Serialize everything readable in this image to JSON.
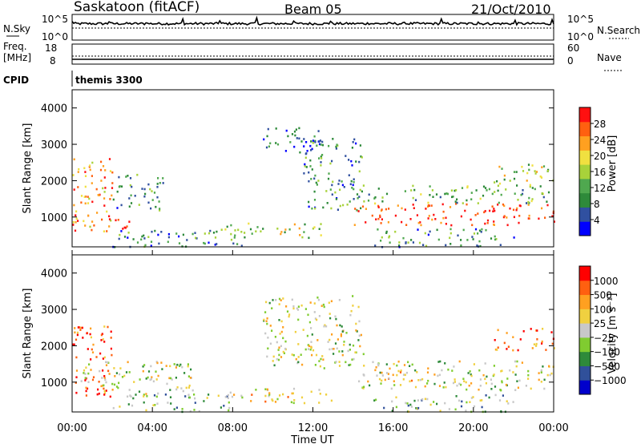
{
  "header": {
    "title": "Saskatoon (fitACF)",
    "beam": "Beam 05",
    "date": "21/Oct/2010"
  },
  "status_panels": {
    "nsky_label": "N.Sky",
    "nsearch_label": "N.Search",
    "noise_ticks_left": [
      "10^5",
      "10^0"
    ],
    "noise_ticks_right": [
      "10^5",
      "10^0"
    ],
    "freq_label_1": "Freq.",
    "freq_label_2": "[MHz]",
    "freq_ticks": [
      "18",
      "8"
    ],
    "nave_label": "Nave",
    "nave_ticks": [
      "60",
      "0"
    ],
    "cpid_label": "CPID",
    "cpid_value": "themis 3300"
  },
  "colors": {
    "power_scale": [
      "#0000ff",
      "#3050a0",
      "#2e8a3a",
      "#4fa84f",
      "#a8d23a",
      "#f0e040",
      "#ffa020",
      "#ff6010",
      "#ff1010"
    ],
    "velocity_scale": [
      "#0000cc",
      "#30509a",
      "#2e8a3a",
      "#80cc30",
      "#c8c8c8",
      "#f0d040",
      "#ffa020",
      "#ff6010",
      "#ff0000"
    ]
  },
  "chart_data": [
    {
      "type": "heatmap",
      "name": "power",
      "ylabel": "Slant Range [km]",
      "yticks": [
        "1000",
        "2000",
        "3000",
        "4000"
      ],
      "ylim": [
        180,
        4500
      ],
      "colorbar_label": "Power [dB]",
      "colorbar_ticks": [
        "4",
        "8",
        "12",
        "16",
        "20",
        "24",
        "28"
      ],
      "colorbar_range": [
        0,
        32
      ],
      "scatter_regions": [
        {
          "t": [
            0.0,
            2.0
          ],
          "r": [
            600,
            2700
          ],
          "level": 0.75
        },
        {
          "t": [
            1.0,
            3.0
          ],
          "r": [
            700,
            1000
          ],
          "level": 0.95
        },
        {
          "t": [
            2.0,
            4.5
          ],
          "r": [
            1200,
            2200
          ],
          "level": 0.25
        },
        {
          "t": [
            2.0,
            9.0
          ],
          "r": [
            200,
            700
          ],
          "level": 0.3
        },
        {
          "t": [
            7.5,
            12.5
          ],
          "r": [
            450,
            850
          ],
          "level": 0.5
        },
        {
          "t": [
            9.5,
            12.5
          ],
          "r": [
            2800,
            3500
          ],
          "level": 0.2
        },
        {
          "t": [
            11.5,
            14.5
          ],
          "r": [
            1200,
            3200
          ],
          "level": 0.3
        },
        {
          "t": [
            14.0,
            24.0
          ],
          "r": [
            800,
            1400
          ],
          "level": 0.9
        },
        {
          "t": [
            14.0,
            24.0
          ],
          "r": [
            1400,
            1900
          ],
          "level": 0.4
        },
        {
          "t": [
            21.0,
            24.0
          ],
          "r": [
            1900,
            2500
          ],
          "level": 0.5
        },
        {
          "t": [
            15.0,
            22.0
          ],
          "r": [
            200,
            700
          ],
          "level": 0.3
        }
      ]
    },
    {
      "type": "heatmap",
      "name": "velocity",
      "ylabel": "Slant Range [km]",
      "xlabel": "Time UT",
      "xticks": [
        "00:00",
        "04:00",
        "08:00",
        "12:00",
        "16:00",
        "20:00",
        "00:00"
      ],
      "xlim": [
        0,
        24
      ],
      "yticks": [
        "1000",
        "2000",
        "3000",
        "4000"
      ],
      "ylim": [
        180,
        4500
      ],
      "colorbar_label": "Velocity [m s⁻¹]",
      "colorbar_ticks": [
        "1000",
        "500",
        "100",
        "25",
        "−25",
        "−100",
        "−500",
        "−1000"
      ],
      "scatter_regions": [
        {
          "t": [
            0.0,
            2.0
          ],
          "r": [
            600,
            2600
          ],
          "level": 0.85
        },
        {
          "t": [
            0.0,
            6.0
          ],
          "r": [
            700,
            1600
          ],
          "level": 0.5
        },
        {
          "t": [
            2.0,
            8.0
          ],
          "r": [
            200,
            700
          ],
          "level": 0.4
        },
        {
          "t": [
            7.5,
            13.0
          ],
          "r": [
            450,
            850
          ],
          "level": 0.6
        },
        {
          "t": [
            9.5,
            14.5
          ],
          "r": [
            1400,
            3400
          ],
          "level": 0.5
        },
        {
          "t": [
            14.0,
            24.0
          ],
          "r": [
            800,
            1600
          ],
          "level": 0.5
        },
        {
          "t": [
            15.0,
            17.0
          ],
          "r": [
            1000,
            1500
          ],
          "level": 0.7
        },
        {
          "t": [
            21.0,
            24.0
          ],
          "r": [
            1900,
            2500
          ],
          "level": 0.8
        },
        {
          "t": [
            15.0,
            22.0
          ],
          "r": [
            200,
            700
          ],
          "level": 0.4
        }
      ]
    }
  ]
}
